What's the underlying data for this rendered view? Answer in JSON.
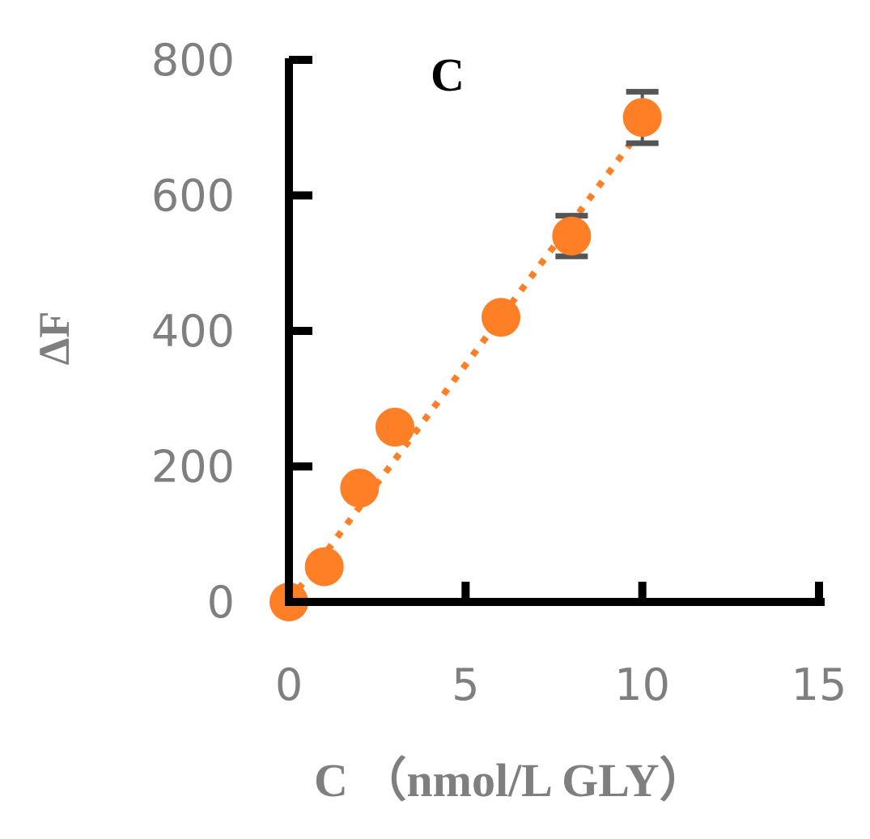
{
  "chart_data": {
    "type": "scatter",
    "panel_label": "C",
    "xlabel": "C （nmol/L GLY）",
    "ylabel": "ΔF",
    "xlim": [
      0,
      15
    ],
    "ylim": [
      0,
      800
    ],
    "x_ticks": [
      "0",
      "5",
      "10",
      "15"
    ],
    "y_ticks": [
      "0",
      "200",
      "400",
      "600",
      "800"
    ],
    "grid": false,
    "marker_color": "#FF7F27",
    "errorbar_color": "#555555",
    "trendline": {
      "style": "dotted",
      "color": "#FF7F27",
      "slope": 70,
      "intercept": 0
    },
    "points": [
      {
        "x": 0,
        "y": 0,
        "err": 0
      },
      {
        "x": 1,
        "y": 52,
        "err": 0
      },
      {
        "x": 2,
        "y": 168,
        "err": 0
      },
      {
        "x": 3,
        "y": 258,
        "err": 0
      },
      {
        "x": 6,
        "y": 420,
        "err": 0
      },
      {
        "x": 8,
        "y": 540,
        "err": 30
      },
      {
        "x": 10,
        "y": 715,
        "err": 38
      }
    ]
  }
}
